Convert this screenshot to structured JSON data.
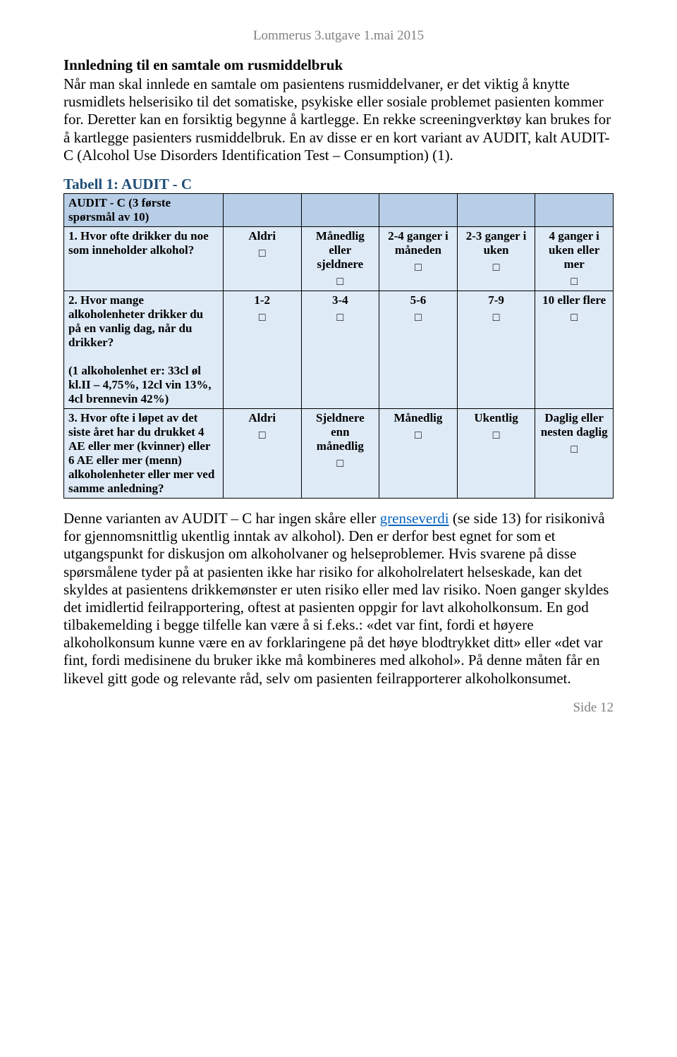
{
  "header": "Lommerus 3.utgave  1.mai 2015",
  "heading": "Innledning til en samtale om rusmiddelbruk",
  "intro": "Når man skal innlede en samtale om pasientens rusmiddelvaner, er det viktig å knytte rusmidlets helserisiko til det somatiske, psykiske eller sosiale problemet pasienten kommer for. Deretter kan en forsiktig begynne å kartlegge. En rekke screeningverktøy kan brukes for å kartlegge pasienters rusmiddelbruk. En av disse er en kort variant av AUDIT, kalt AUDIT-C (Alcohol Use Disorders Identification Test – Consumption) (1).",
  "subheading": "Tabell 1: AUDIT - C",
  "table": {
    "header_cell": "AUDIT - C (3 første spørsmål av 10)",
    "q1": {
      "text": "1. Hvor ofte drikker du noe som inneholder alkohol?",
      "opts": [
        "Aldri",
        "Månedlig eller sjeldnere",
        "2-4 ganger i måneden",
        "2-3 ganger i uken",
        "4 ganger i uken eller mer"
      ]
    },
    "q2": {
      "text": "2. Hvor mange alkoholenheter drikker du på en vanlig dag, når du drikker?",
      "note": "(1 alkoholenhet er: 33cl øl kl.II – 4,75%, 12cl vin 13%, 4cl brennevin 42%)",
      "opts": [
        "1-2",
        "3-4",
        "5-6",
        "7-9",
        "10 eller flere"
      ]
    },
    "q3": {
      "text": "3. Hvor ofte i løpet av det siste året har du drukket 4 AE eller mer (kvinner) eller 6 AE eller mer (menn) alkoholenheter eller mer ved samme anledning?",
      "opts": [
        "Aldri",
        "Sjeldnere enn månedlig",
        "Månedlig",
        "Ukentlig",
        "Daglig eller nesten daglig"
      ]
    }
  },
  "closing_pre": "Denne varianten av AUDIT – C har ingen skåre eller ",
  "closing_link": "grenseverdi",
  "closing_post": " (se side 13) for risikonivå for gjennomsnittlig ukentlig inntak av alkohol). Den er derfor best egnet for som et utgangspunkt for diskusjon om alkoholvaner og helseproblemer. Hvis svarene på disse spørsmålene tyder på at pasienten ikke har risiko for alkoholrelatert helseskade, kan det skyldes at pasientens drikkemønster er uten risiko eller med lav risiko. Noen ganger skyldes det imidlertid feilrapportering, oftest at pasienten oppgir for lavt alkoholkonsum. En god tilbakemelding i begge tilfelle kan være å si f.eks.: «det var fint, fordi et høyere alkoholkonsum kunne være en av forklaringene på det høye blodtrykket ditt» eller «det var fint, fordi medisinene du bruker ikke må kombineres med alkohol». På denne måten får en likevel gitt gode og relevante råd, selv om pasienten feilrapporterer alkoholkonsumet.",
  "footer": "Side 12",
  "checkbox_char": "□"
}
